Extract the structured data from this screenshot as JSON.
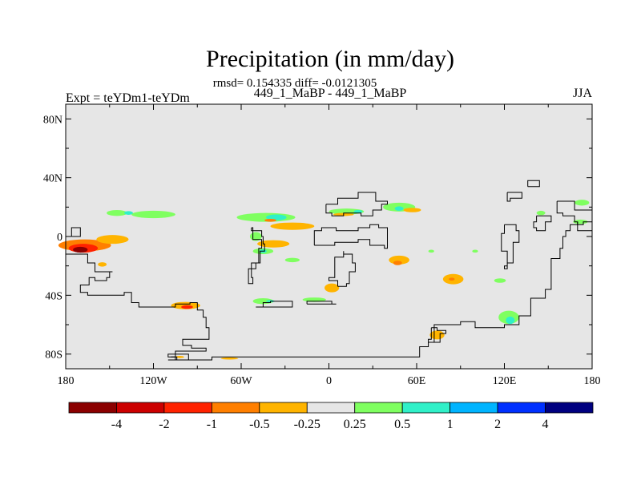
{
  "chart_data": {
    "type": "heatmap",
    "title": "Precipitation (in mm/day)",
    "stats": "rmsd= 0.154335 diff= -0.0121305",
    "subtitle": "449_1_MaBP - 449_1_MaBP",
    "left_label": "Expt = teYDm1-teYDm",
    "right_label": "JJA",
    "x_ticks": [
      "180",
      "120W",
      "60W",
      "0",
      "60E",
      "120E",
      "180"
    ],
    "x_tick_values": [
      -180,
      -120,
      -60,
      0,
      60,
      120,
      180
    ],
    "y_ticks": [
      "80N",
      "40N",
      "0",
      "40S",
      "80S"
    ],
    "y_tick_values": [
      80,
      40,
      0,
      -40,
      -80
    ],
    "xlim": [
      -180,
      180
    ],
    "ylim": [
      -90,
      90
    ],
    "colorbar": {
      "labels": [
        "-4",
        "-2",
        "-1",
        "-0.5",
        "-0.25",
        "0.25",
        "0.5",
        "1",
        "2",
        "4"
      ],
      "colors": [
        "#8b0000",
        "#cc0000",
        "#ff2200",
        "#ff7f00",
        "#ffb400",
        "#e6e6e6",
        "#7fff60",
        "#30f0c8",
        "#00b4ff",
        "#0030ff",
        "#000080"
      ]
    },
    "anomaly_regions": [
      {
        "lon": -167,
        "lat": -6,
        "w": 36,
        "h": 8,
        "level": "-0.5"
      },
      {
        "lon": -168,
        "lat": -8,
        "w": 20,
        "h": 6,
        "level": "-1"
      },
      {
        "lon": -170,
        "lat": -9,
        "w": 10,
        "h": 4,
        "level": "-4"
      },
      {
        "lon": -148,
        "lat": -2,
        "w": 22,
        "h": 6,
        "level": "-0.25"
      },
      {
        "lon": -120,
        "lat": 15,
        "w": 30,
        "h": 5,
        "level": "0.25"
      },
      {
        "lon": -145,
        "lat": 16,
        "w": 14,
        "h": 4,
        "level": "0.25"
      },
      {
        "lon": -137,
        "lat": 16,
        "w": 6,
        "h": 2.5,
        "level": "0.5"
      },
      {
        "lon": -98,
        "lat": -47,
        "w": 20,
        "h": 5,
        "level": "-0.25"
      },
      {
        "lon": -97,
        "lat": -48,
        "w": 8,
        "h": 2.5,
        "level": "-1"
      },
      {
        "lon": -43,
        "lat": 13,
        "w": 40,
        "h": 6,
        "level": "0.25"
      },
      {
        "lon": -36,
        "lat": 13,
        "w": 14,
        "h": 4,
        "level": "0.5"
      },
      {
        "lon": -25,
        "lat": 7,
        "w": 30,
        "h": 5,
        "level": "-0.25"
      },
      {
        "lon": -40,
        "lat": 11,
        "w": 8,
        "h": 2,
        "level": "-0.5"
      },
      {
        "lon": -38,
        "lat": -5,
        "w": 22,
        "h": 5,
        "level": "-0.25"
      },
      {
        "lon": -45,
        "lat": -10,
        "w": 14,
        "h": 4,
        "level": "0.25"
      },
      {
        "lon": -45,
        "lat": -10,
        "w": 5,
        "h": 2.5,
        "level": "0.5"
      },
      {
        "lon": -25,
        "lat": -16,
        "w": 10,
        "h": 3,
        "level": "0.25"
      },
      {
        "lon": -50,
        "lat": 0,
        "w": 8,
        "h": 6,
        "level": "0.25"
      },
      {
        "lon": 12,
        "lat": 17,
        "w": 24,
        "h": 4,
        "level": "0.25"
      },
      {
        "lon": 20,
        "lat": 17,
        "w": 6,
        "h": 2,
        "level": "0.5"
      },
      {
        "lon": 10,
        "lat": 15,
        "w": 14,
        "h": 2,
        "level": "-0.25"
      },
      {
        "lon": 48,
        "lat": 20,
        "w": 22,
        "h": 6,
        "level": "0.25"
      },
      {
        "lon": 48,
        "lat": 19,
        "w": 6,
        "h": 3,
        "level": "0.5"
      },
      {
        "lon": 57,
        "lat": 18,
        "w": 12,
        "h": 3,
        "level": "-0.25"
      },
      {
        "lon": 48,
        "lat": -16,
        "w": 14,
        "h": 6,
        "level": "-0.25"
      },
      {
        "lon": 47,
        "lat": -18,
        "w": 6,
        "h": 3,
        "level": "-0.5"
      },
      {
        "lon": 2,
        "lat": -35,
        "w": 10,
        "h": 6,
        "level": "-0.25"
      },
      {
        "lon": 85,
        "lat": -29,
        "w": 14,
        "h": 7,
        "level": "-0.25"
      },
      {
        "lon": 84,
        "lat": -29,
        "w": 4,
        "h": 2,
        "level": "-0.5"
      },
      {
        "lon": 117,
        "lat": -30,
        "w": 8,
        "h": 3,
        "level": "0.25"
      },
      {
        "lon": 123,
        "lat": -55,
        "w": 14,
        "h": 9,
        "level": "0.25"
      },
      {
        "lon": 124,
        "lat": -57,
        "w": 6,
        "h": 5,
        "level": "0.5"
      },
      {
        "lon": 74,
        "lat": -67,
        "w": 10,
        "h": 6,
        "level": "-0.25"
      },
      {
        "lon": -45,
        "lat": -44,
        "w": 14,
        "h": 4,
        "level": "0.25"
      },
      {
        "lon": -40,
        "lat": -44,
        "w": 6,
        "h": 1.5,
        "level": "0.5"
      },
      {
        "lon": -10,
        "lat": -43,
        "w": 16,
        "h": 3,
        "level": "0.25"
      },
      {
        "lon": -155,
        "lat": -19,
        "w": 6,
        "h": 3,
        "level": "-0.25"
      },
      {
        "lon": 145,
        "lat": 16,
        "w": 6,
        "h": 3,
        "level": "0.25"
      },
      {
        "lon": 173,
        "lat": 23,
        "w": 10,
        "h": 4,
        "level": "0.25"
      },
      {
        "lon": 172,
        "lat": 10,
        "w": 10,
        "h": 3,
        "level": "0.25"
      },
      {
        "lon": -102,
        "lat": -82,
        "w": 6,
        "h": 1.5,
        "level": "-0.25"
      },
      {
        "lon": -68,
        "lat": -83,
        "w": 12,
        "h": 1.5,
        "level": "-0.25"
      },
      {
        "lon": 70,
        "lat": -10,
        "w": 4,
        "h": 2,
        "level": "0.25"
      },
      {
        "lon": 100,
        "lat": -10,
        "w": 4,
        "h": 2,
        "level": "0.25"
      }
    ],
    "coastlines": [
      [
        [
          -180,
          -12
        ],
        [
          -165,
          -18
        ],
        [
          -160,
          -24
        ],
        [
          -148,
          -24
        ],
        [
          -150,
          -28
        ],
        [
          -152,
          -30
        ],
        [
          -160,
          -28
        ],
        [
          -164,
          -33
        ],
        [
          -170,
          -38
        ],
        [
          -165,
          -40
        ],
        [
          -150,
          -40
        ],
        [
          -140,
          -38
        ],
        [
          -135,
          -45
        ],
        [
          -130,
          -48
        ],
        [
          -120,
          -48
        ],
        [
          -105,
          -46
        ],
        [
          -95,
          -45
        ],
        [
          -90,
          -50
        ],
        [
          -86,
          -55
        ],
        [
          -84,
          -62
        ],
        [
          -82,
          -70
        ],
        [
          -100,
          -70
        ],
        [
          -100,
          -74
        ],
        [
          -94,
          -76
        ],
        [
          -84,
          -78
        ],
        [
          -105,
          -78
        ],
        [
          -105,
          -82
        ],
        [
          -108,
          -82
        ],
        [
          -104,
          -84
        ],
        [
          -80,
          -82
        ],
        [
          -40,
          -82
        ],
        [
          20,
          -82
        ],
        [
          60,
          -82
        ],
        [
          62,
          -75
        ],
        [
          68,
          -72
        ],
        [
          72,
          -60
        ],
        [
          90,
          -58
        ],
        [
          100,
          -62
        ],
        [
          110,
          -62
        ],
        [
          120,
          -60
        ],
        [
          130,
          -54
        ],
        [
          138,
          -42
        ],
        [
          148,
          -36
        ],
        [
          152,
          -28
        ],
        [
          152,
          -15
        ],
        [
          158,
          -8
        ],
        [
          160,
          0
        ],
        [
          162,
          4
        ],
        [
          165,
          8
        ],
        [
          170,
          10
        ],
        [
          170,
          4
        ],
        [
          180,
          2
        ]
      ],
      [
        [
          -96,
          -84
        ],
        [
          -110,
          -84
        ],
        [
          -105,
          -82
        ],
        [
          -110,
          -80
        ],
        [
          -100,
          -80
        ],
        [
          -96,
          -84
        ]
      ],
      [
        [
          -53,
          6
        ],
        [
          -52,
          -2
        ],
        [
          -46,
          -8
        ],
        [
          -48,
          -18
        ],
        [
          -53,
          -28
        ],
        [
          -52,
          -32
        ],
        [
          -55,
          -32
        ],
        [
          -55,
          -22
        ],
        [
          -50,
          -18
        ],
        [
          -47,
          -10
        ],
        [
          -44,
          -5
        ],
        [
          -45,
          0
        ],
        [
          -46,
          4
        ],
        [
          -53,
          6
        ]
      ],
      [
        [
          -40,
          -44
        ],
        [
          -25,
          -44
        ],
        [
          -25,
          -48
        ],
        [
          -50,
          -48
        ],
        [
          -45,
          -45
        ],
        [
          -40,
          -44
        ]
      ],
      [
        [
          -15,
          -46
        ],
        [
          5,
          -46
        ],
        [
          2,
          -44
        ],
        [
          -15,
          -44
        ],
        [
          -15,
          -46
        ]
      ],
      [
        [
          -10,
          -6
        ],
        [
          0,
          -6
        ],
        [
          4,
          -4
        ],
        [
          20,
          -2
        ],
        [
          28,
          -6
        ],
        [
          38,
          -8
        ],
        [
          40,
          -4
        ],
        [
          40,
          6
        ],
        [
          34,
          8
        ],
        [
          28,
          6
        ],
        [
          20,
          4
        ],
        [
          12,
          4
        ],
        [
          5,
          6
        ],
        [
          -5,
          4
        ],
        [
          -10,
          0
        ],
        [
          -10,
          -6
        ]
      ],
      [
        [
          6,
          -34
        ],
        [
          12,
          -32
        ],
        [
          14,
          -24
        ],
        [
          18,
          -18
        ],
        [
          16,
          -12
        ],
        [
          10,
          -10
        ],
        [
          10,
          -14
        ],
        [
          4,
          -20
        ],
        [
          4,
          -28
        ],
        [
          0,
          -30
        ],
        [
          6,
          -34
        ]
      ],
      [
        [
          -2,
          22
        ],
        [
          6,
          26
        ],
        [
          16,
          26
        ],
        [
          20,
          30
        ],
        [
          30,
          30
        ],
        [
          32,
          24
        ],
        [
          40,
          22
        ],
        [
          36,
          18
        ],
        [
          30,
          14
        ],
        [
          22,
          16
        ],
        [
          10,
          14
        ],
        [
          2,
          16
        ],
        [
          -2,
          22
        ]
      ],
      [
        [
          70,
          -62
        ],
        [
          74,
          -64
        ],
        [
          80,
          -66
        ],
        [
          76,
          -72
        ],
        [
          68,
          -70
        ],
        [
          70,
          -62
        ]
      ],
      [
        [
          122,
          30
        ],
        [
          132,
          30
        ],
        [
          132,
          26
        ],
        [
          128,
          26
        ],
        [
          124,
          24
        ],
        [
          122,
          26
        ],
        [
          122,
          30
        ]
      ],
      [
        [
          156,
          24
        ],
        [
          166,
          24
        ],
        [
          168,
          18
        ],
        [
          180,
          18
        ],
        [
          180,
          10
        ],
        [
          174,
          8
        ],
        [
          170,
          10
        ],
        [
          168,
          14
        ],
        [
          160,
          16
        ],
        [
          156,
          20
        ],
        [
          156,
          24
        ]
      ],
      [
        [
          120,
          8
        ],
        [
          126,
          8
        ],
        [
          128,
          4
        ],
        [
          130,
          -4
        ],
        [
          126,
          -18
        ],
        [
          122,
          -22
        ],
        [
          120,
          -20
        ],
        [
          122,
          -10
        ],
        [
          118,
          -6
        ],
        [
          118,
          2
        ],
        [
          120,
          8
        ]
      ],
      [
        [
          142,
          14
        ],
        [
          150,
          14
        ],
        [
          152,
          10
        ],
        [
          148,
          4
        ],
        [
          142,
          6
        ],
        [
          140,
          10
        ],
        [
          142,
          14
        ]
      ],
      [
        [
          136,
          34
        ],
        [
          144,
          34
        ],
        [
          144,
          38
        ],
        [
          136,
          38
        ],
        [
          136,
          34
        ]
      ],
      [
        [
          -176,
          0
        ],
        [
          -170,
          0
        ],
        [
          -170,
          6
        ],
        [
          -176,
          6
        ],
        [
          -176,
          0
        ]
      ]
    ]
  }
}
